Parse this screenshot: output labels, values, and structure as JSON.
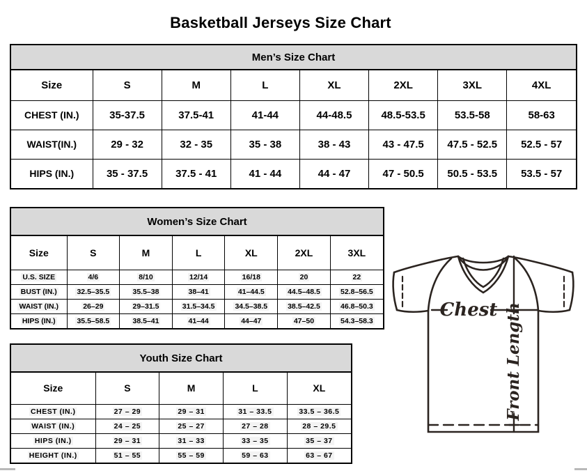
{
  "page_title": "Basketball Jerseys Size Chart",
  "tables": {
    "mens": {
      "title": "Men’s Size Chart",
      "header": [
        "Size",
        "S",
        "M",
        "L",
        "XL",
        "2XL",
        "3XL",
        "4XL"
      ],
      "rows": [
        [
          "CHEST (IN.)",
          "35-37.5",
          "37.5-41",
          "41-44",
          "44-48.5",
          "48.5-53.5",
          "53.5-58",
          "58-63"
        ],
        [
          "WAIST(IN.)",
          "29 - 32",
          "32 - 35",
          "35 - 38",
          "38 - 43",
          "43 - 47.5",
          "47.5 - 52.5",
          "52.5 - 57"
        ],
        [
          "HIPS (IN.)",
          "35 - 37.5",
          "37.5 - 41",
          "41 - 44",
          "44 - 47",
          "47 - 50.5",
          "50.5 - 53.5",
          "53.5 - 57"
        ]
      ]
    },
    "womens": {
      "title": "Women’s Size Chart",
      "header": [
        "Size",
        "S",
        "M",
        "L",
        "XL",
        "2XL",
        "3XL"
      ],
      "rows": [
        [
          "U.S. SIZE",
          "4/6",
          "8/10",
          "12/14",
          "16/18",
          "20",
          "22"
        ],
        [
          "BUST (IN.)",
          "32.5–35.5",
          "35.5–38",
          "38–41",
          "41–44.5",
          "44.5–48.5",
          "52.8–56.5"
        ],
        [
          "WAIST (IN.)",
          "26–29",
          "29–31.5",
          "31.5–34.5",
          "34.5–38.5",
          "38.5–42.5",
          "46.8–50.3"
        ],
        [
          "HIPS (IN.)",
          "35.5–58.5",
          "38.5–41",
          "41–44",
          "44–47",
          "47–50",
          "54.3–58.3"
        ]
      ]
    },
    "youth": {
      "title": "Youth Size Chart",
      "header": [
        "Size",
        "S",
        "M",
        "L",
        "XL"
      ],
      "rows": [
        [
          "CHEST (IN.)",
          "27 – 29",
          "29 – 31",
          "31 – 33.5",
          "33.5 – 36.5"
        ],
        [
          "WAIST (IN.)",
          "24 – 25",
          "25 – 27",
          "27 – 28",
          "28 – 29.5"
        ],
        [
          "HIPS (IN.)",
          "29 – 31",
          "31 – 33",
          "33 – 35",
          "35 – 37"
        ],
        [
          "HEIGHT (IN.)",
          "51 – 55",
          "55 – 59",
          "59 – 63",
          "63 – 67"
        ]
      ]
    }
  },
  "diagram": {
    "chest_label": "Chest",
    "front_length_label": "Front Length"
  },
  "colors": {
    "table_header_bg": "#d9d9d9",
    "border": "#000000",
    "diagram_stroke": "#2b2420",
    "scrollbar_fragment": "#b9b9b9"
  }
}
